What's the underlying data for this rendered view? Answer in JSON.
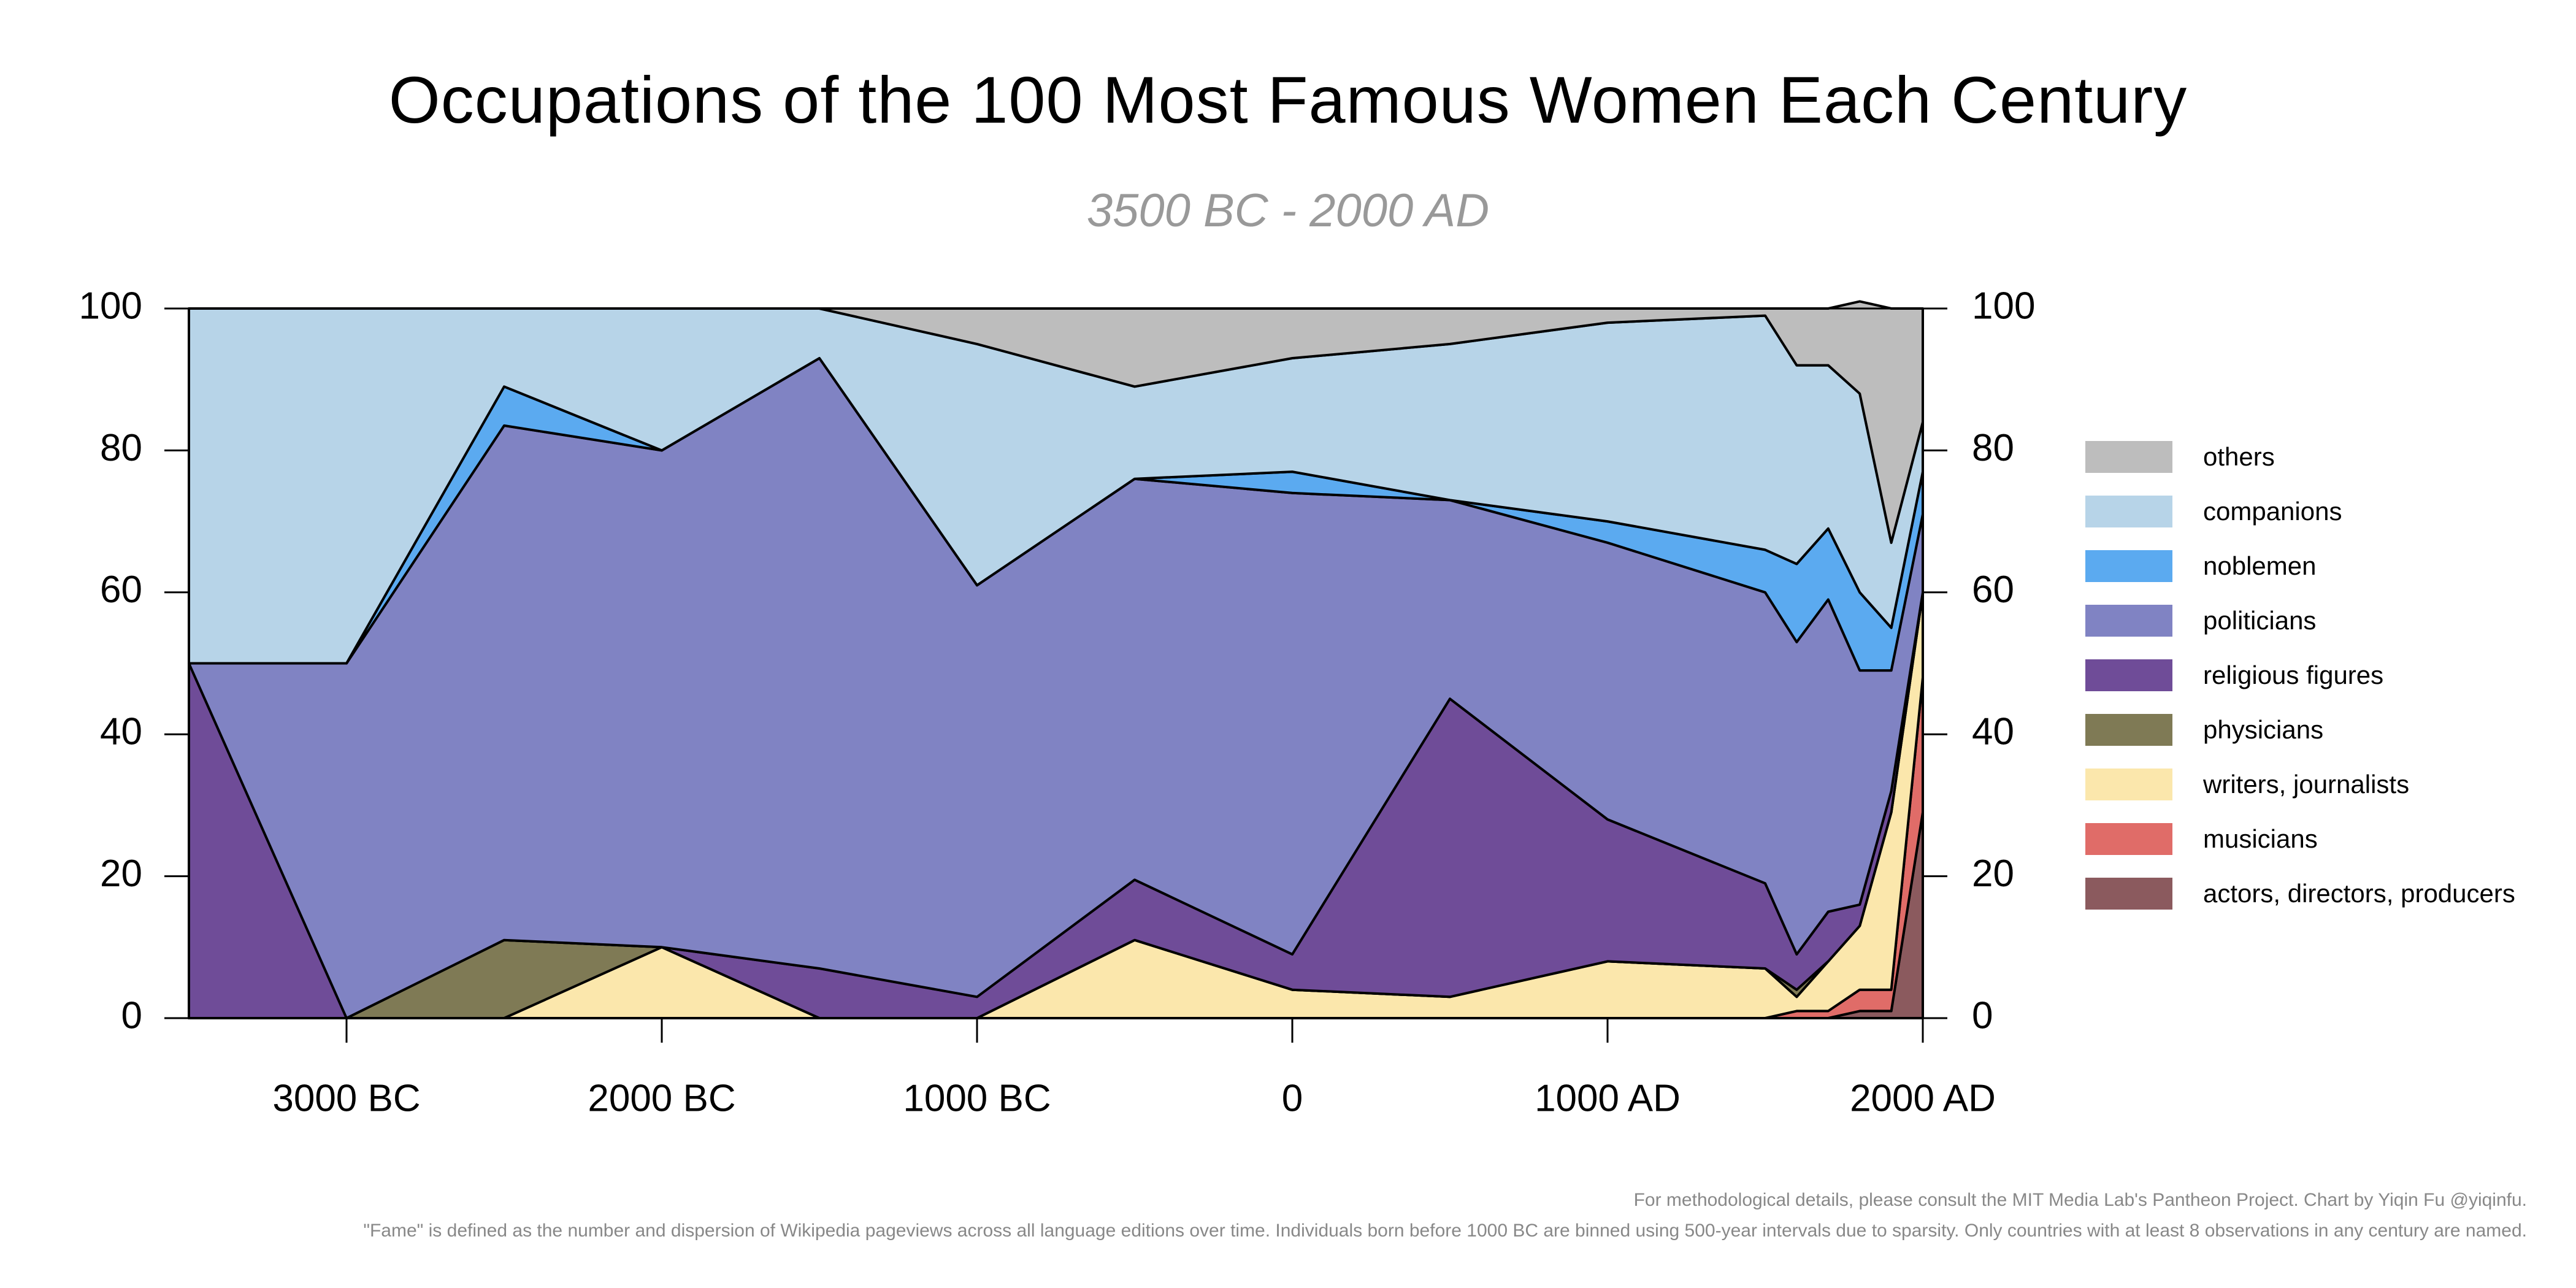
{
  "chart_data": {
    "type": "area",
    "stacked": true,
    "title": "Occupations of the 100 Most Famous Women Each Century",
    "subtitle": "3500 BC - 2000 AD",
    "x": [
      -3500,
      -3000,
      -2500,
      -2000,
      -1500,
      -1000,
      -500,
      0,
      500,
      1000,
      1500,
      1600,
      1700,
      1800,
      1900,
      2000
    ],
    "x_tick_values": [
      -3000,
      -2000,
      -1000,
      0,
      1000,
      2000
    ],
    "x_tick_labels": [
      "3000 BC",
      "2000 BC",
      "1000 BC",
      "0",
      "1000 AD",
      "2000 AD"
    ],
    "y_tick_labels": [
      "0",
      "20",
      "40",
      "60",
      "80",
      "100"
    ],
    "xlim": [
      -3500,
      2000
    ],
    "ylim": [
      0,
      100
    ],
    "series": [
      {
        "name": "actors, directors, producers",
        "color": "#8B5A5E",
        "values": [
          0,
          0,
          0,
          0,
          0,
          0,
          0,
          0,
          0,
          0,
          0,
          0,
          0,
          1,
          1,
          29
        ]
      },
      {
        "name": "musicians",
        "color": "#E06C68",
        "values": [
          0,
          0,
          0,
          0,
          0,
          0,
          0,
          0,
          0,
          0,
          0,
          1,
          1,
          3,
          3,
          19
        ]
      },
      {
        "name": "writers, journalists",
        "color": "#FBE7AC",
        "values": [
          0,
          0,
          0,
          10,
          0,
          0,
          11,
          4,
          3,
          8,
          7,
          2,
          7,
          9,
          25,
          12
        ]
      },
      {
        "name": "physicians",
        "color": "#7F7A55",
        "values": [
          0,
          0,
          11,
          0,
          0,
          0,
          0,
          0,
          0,
          0,
          0,
          1,
          0,
          0,
          0,
          0
        ]
      },
      {
        "name": "religious figures",
        "color": "#6F4C98",
        "values": [
          50,
          0,
          0,
          0,
          7,
          3,
          8.5,
          5,
          42,
          20,
          12,
          5,
          7,
          3,
          3,
          0
        ]
      },
      {
        "name": "politicians",
        "color": "#8083C3",
        "values": [
          0,
          50,
          72.5,
          70,
          86,
          58,
          56.5,
          65,
          28,
          39,
          41,
          44,
          44,
          33,
          17,
          11
        ]
      },
      {
        "name": "noblemen",
        "color": "#5BAAF0",
        "values": [
          0,
          0,
          5.5,
          0,
          0,
          0,
          0,
          3,
          0,
          3,
          6,
          11,
          10,
          11,
          6,
          6
        ]
      },
      {
        "name": "companions",
        "color": "#B7D4E8",
        "values": [
          50,
          50,
          11,
          20,
          7,
          34,
          13,
          16,
          22,
          28,
          33,
          28,
          23,
          28,
          12,
          7
        ]
      },
      {
        "name": "others",
        "color": "#BDBDBD",
        "values": [
          0,
          0,
          0,
          0,
          0,
          5,
          11,
          7,
          5,
          2,
          1,
          8,
          8,
          13,
          33,
          16
        ]
      }
    ],
    "legend_order": [
      "others",
      "companions",
      "noblemen",
      "politicians",
      "religious figures",
      "physicians",
      "writers, journalists",
      "musicians",
      "actors, directors, producers"
    ],
    "legend_position": "right",
    "grid": false
  },
  "footnotes": {
    "line1": "For methodological details, please consult the MIT Media Lab's Pantheon Project. Chart by Yiqin Fu @yiqinfu.",
    "line2": "\"Fame\" is defined as the number and dispersion of Wikipedia pageviews across all language editions over time. Individuals born before 1000 BC are binned using 500-year intervals due to sparsity. Only countries with at least 8 observations in any century are named."
  }
}
